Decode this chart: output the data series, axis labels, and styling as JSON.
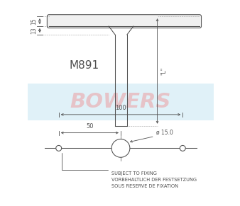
{
  "bowers_text": "BOWERS",
  "bowers_color": "#f08080",
  "bowers_alpha": 0.4,
  "model_text": "M891",
  "dim_15": "15",
  "dim_13": "13",
  "dim_100": "100",
  "dim_50": "50",
  "dim_L": "\"L\"",
  "dim_circle": "ø 15.0",
  "note1": "SUBJECT TO FIXING",
  "note2": "VORBEHALTLICH DER FESTSETZUNG",
  "note3": "SOUS RESERVE DE FIXATION",
  "white_color": "#ffffff",
  "draw_color": "#505050",
  "blue_bg": "#cce8f4"
}
